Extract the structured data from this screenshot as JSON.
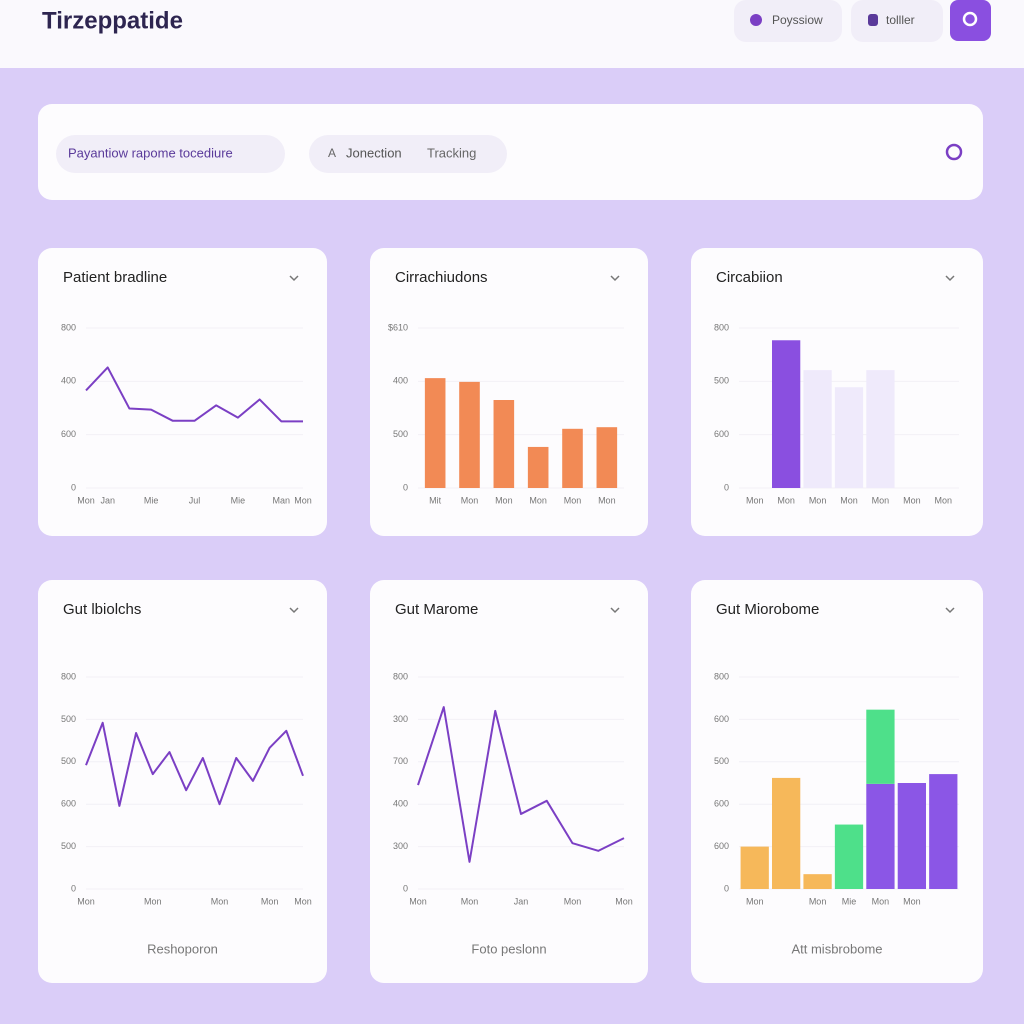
{
  "header": {
    "title": "Tirzeppatide",
    "buttons": [
      "Poyssiow",
      "tolller"
    ]
  },
  "toolbar": {
    "tabs": [
      "Payantiow rapome tocediure",
      "Jonection",
      "Tracking"
    ]
  },
  "chart_data": [
    {
      "type": "line",
      "title": "Patient bradline",
      "color": "#7b3fc4",
      "categories": [
        "Mon",
        "Jan",
        null,
        "Mie",
        null,
        "Jul",
        null,
        "Mie",
        null,
        "Man",
        "Mon"
      ],
      "values": [
        183,
        226,
        149,
        147,
        126,
        126,
        155,
        132,
        166,
        125,
        125
      ],
      "ylim": [
        0,
        300
      ],
      "yticks": [
        0,
        {
          "value": 100,
          "label": "600"
        },
        {
          "value": 200,
          "label": "400"
        },
        {
          "value": 300,
          "label": "800"
        }
      ]
    },
    {
      "type": "bar",
      "title": "Cirrachiudons",
      "color": "#f28a55",
      "categories": [
        "Mit",
        "Mon",
        "Mon",
        "Mon",
        "Mon",
        "Mon"
      ],
      "values": [
        206,
        199,
        165,
        77,
        111,
        114
      ],
      "ylim": [
        0,
        300
      ],
      "yticks": [
        0,
        {
          "value": 100,
          "label": "500"
        },
        {
          "value": 200,
          "label": "400"
        },
        {
          "value": 300,
          "label": "$610"
        }
      ]
    },
    {
      "type": "stacked_bar",
      "title": "Circabiion",
      "categories": [
        "Mon",
        "Mon",
        "Mon",
        "Mon",
        "Mon",
        "Mon",
        "Mon"
      ],
      "series": [
        {
          "color": "#8a4fe0",
          "values": [
            null,
            277,
            null,
            null,
            null,
            null,
            null
          ]
        },
        {
          "color": "#efeafb",
          "values": [
            null,
            null,
            221,
            189,
            221,
            null,
            null
          ]
        }
      ],
      "ylim": [
        0,
        300
      ],
      "yticks": [
        0,
        {
          "value": 100,
          "label": "600"
        },
        {
          "value": 200,
          "label": "500"
        },
        {
          "value": 300,
          "label": "800"
        }
      ]
    },
    {
      "type": "line",
      "title": "Gut lbiolchs",
      "color": "#7b3fc4",
      "categories": [
        "Mon",
        null,
        null,
        null,
        "Mon",
        null,
        null,
        null,
        "Mon",
        null,
        null,
        "Mon",
        null,
        "Mon"
      ],
      "values": [
        292,
        392,
        196,
        368,
        271,
        323,
        233,
        309,
        200,
        309,
        255,
        333,
        373,
        267
      ],
      "ylim": [
        0,
        500
      ],
      "yticks": [
        0,
        {
          "value": 100,
          "label": "500"
        },
        {
          "value": 200,
          "label": "600"
        },
        {
          "value": 300,
          "label": "500"
        },
        {
          "value": 400,
          "label": "500"
        },
        {
          "value": 500,
          "label": "800"
        }
      ],
      "footer": "Reshoporon"
    },
    {
      "type": "line",
      "title": "Gut Marome",
      "color": "#7b3fc4",
      "categories": [
        "Mon",
        null,
        "Mon",
        null,
        "Jan",
        null,
        "Mon",
        null,
        "Mon"
      ],
      "values": [
        245,
        429,
        64,
        420,
        177,
        208,
        108,
        90,
        120
      ],
      "ylim": [
        0,
        500
      ],
      "yticks": [
        0,
        {
          "value": 100,
          "label": "300"
        },
        {
          "value": 200,
          "label": "400"
        },
        {
          "value": 300,
          "label": "700"
        },
        {
          "value": 400,
          "label": "300"
        },
        {
          "value": 500,
          "label": "800"
        }
      ],
      "footer": "Foto peslonn"
    },
    {
      "type": "stacked_bar",
      "title": "Gut Miorobome",
      "categories": [
        "Mon",
        null,
        "Mon",
        "Mie",
        "Mon",
        "Mon",
        null
      ],
      "series": [
        {
          "color": "#f6b85a",
          "values": [
            100,
            262,
            35,
            null,
            null,
            null,
            null
          ]
        },
        {
          "color": "#8b56e6",
          "values": [
            null,
            null,
            null,
            null,
            248,
            250,
            271
          ]
        },
        {
          "color": "#4ee08a",
          "values": [
            null,
            null,
            null,
            152,
            175,
            null,
            null
          ]
        }
      ],
      "ylim": [
        0,
        500
      ],
      "yticks": [
        0,
        {
          "value": 100,
          "label": "600"
        },
        {
          "value": 200,
          "label": "600"
        },
        {
          "value": 300,
          "label": "500"
        },
        {
          "value": 400,
          "label": "600"
        },
        {
          "value": 500,
          "label": "800"
        }
      ],
      "footer": "Att misbrobome"
    }
  ]
}
